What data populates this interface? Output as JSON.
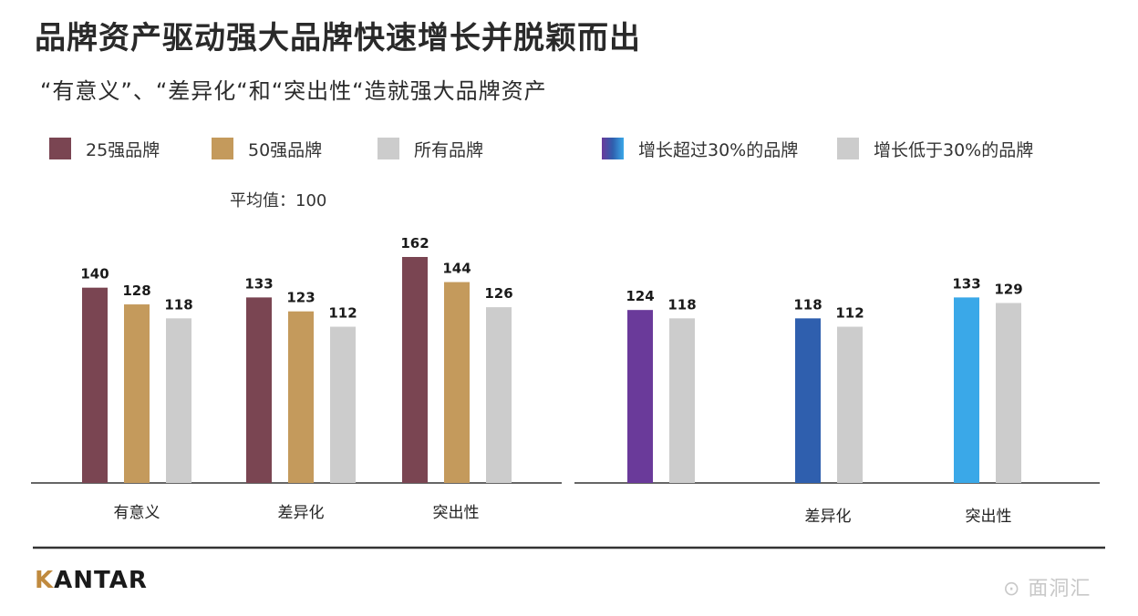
{
  "title": "品牌资产驱动强大品牌快速增长并脱颖而出",
  "subtitle": "“有意义”、“差异化“和“突出性“造就强大品牌资产",
  "legend": {
    "left": [
      {
        "label": "25强品牌",
        "color": "#7a4552"
      },
      {
        "label": "50强品牌",
        "color": "#c49a5c"
      },
      {
        "label": "所有品牌",
        "color": "#cccccc"
      }
    ],
    "right": [
      {
        "label": "增长超过30%的品牌",
        "color": "#3aa8e8"
      },
      {
        "label": "增长低于30%的品牌",
        "color": "#cccccc"
      }
    ]
  },
  "avg_label": "平均值：100",
  "brand": {
    "logo_k": "K",
    "logo_rest": "ANTAR"
  },
  "watermark": "⊙ 面洞汇",
  "chart_data": [
    {
      "type": "bar",
      "categories": [
        "有意义",
        "差异化",
        "突出性"
      ],
      "series": [
        {
          "name": "25强品牌",
          "values": [
            140,
            133,
            162
          ],
          "colors": [
            "#7a4552",
            "#7a4552",
            "#7a4552"
          ]
        },
        {
          "name": "50强品牌",
          "values": [
            128,
            123,
            144
          ],
          "colors": [
            "#c49a5c",
            "#c49a5c",
            "#c49a5c"
          ]
        },
        {
          "name": "所有品牌",
          "values": [
            118,
            112,
            126
          ],
          "colors": [
            "#cccccc",
            "#cccccc",
            "#cccccc"
          ]
        }
      ],
      "ylim": [
        0,
        162
      ],
      "grid": false
    },
    {
      "type": "bar",
      "categories": [
        "",
        "差异化",
        "突出性"
      ],
      "series": [
        {
          "name": "增长超过30%的品牌",
          "values": [
            124,
            118,
            133
          ],
          "colors": [
            "#6a3a9a",
            "#2f5fae",
            "#3aa8e8"
          ]
        },
        {
          "name": "增长低于30%的品牌",
          "values": [
            118,
            112,
            129
          ],
          "colors": [
            "#cccccc",
            "#cccccc",
            "#cccccc"
          ]
        }
      ],
      "ylim": [
        0,
        162
      ],
      "grid": false
    }
  ]
}
